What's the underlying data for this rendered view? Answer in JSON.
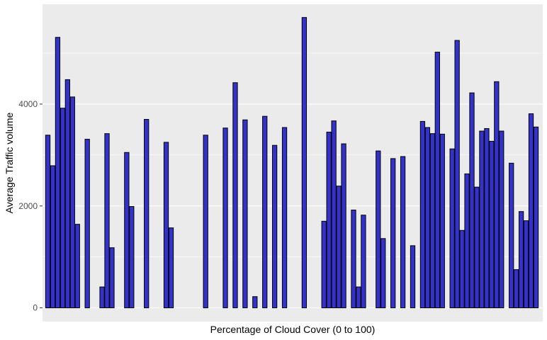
{
  "chart_data": {
    "type": "bar",
    "title": "",
    "xlabel": "Percentage of Cloud Cover (0 to 100)",
    "ylabel": "Average Traffic volume",
    "ylim": [
      -270,
      5960
    ],
    "yticks": [
      0,
      2000,
      4000
    ],
    "x_tick_labels_shown": false,
    "grid": true,
    "legend": "none",
    "x": [
      0,
      1,
      2,
      3,
      4,
      5,
      6,
      8,
      11,
      12,
      13,
      16,
      17,
      20,
      24,
      25,
      32,
      36,
      38,
      40,
      42,
      44,
      46,
      48,
      52,
      56,
      57,
      58,
      59,
      60,
      62,
      63,
      64,
      67,
      68,
      70,
      72,
      74,
      76,
      77,
      78,
      79,
      80,
      82,
      83,
      84,
      85,
      86,
      87,
      88,
      89,
      90,
      91,
      92,
      94,
      95,
      96,
      97,
      98
    ],
    "values": [
      3390,
      2790,
      5310,
      3920,
      4480,
      4140,
      1640,
      3310,
      410,
      3420,
      1180,
      3050,
      1990,
      3700,
      3250,
      1570,
      3390,
      3530,
      4420,
      3690,
      220,
      3760,
      3190,
      3540,
      5700,
      1700,
      3450,
      3670,
      2390,
      3220,
      1920,
      410,
      1820,
      3080,
      1360,
      2930,
      2970,
      1220,
      3660,
      3540,
      3420,
      5020,
      3410,
      3120,
      5250,
      1520,
      2630,
      4220,
      2370,
      3470,
      3520,
      3270,
      4440,
      3470,
      2840,
      750,
      1890,
      1710,
      3810
    ],
    "values_extra": [
      3550
    ],
    "x_extra": [
      99
    ],
    "colors": {
      "bar_fill": "#3333cc",
      "bar_stroke": "#000000",
      "panel": "#ebebeb",
      "grid": "#ffffff"
    }
  }
}
